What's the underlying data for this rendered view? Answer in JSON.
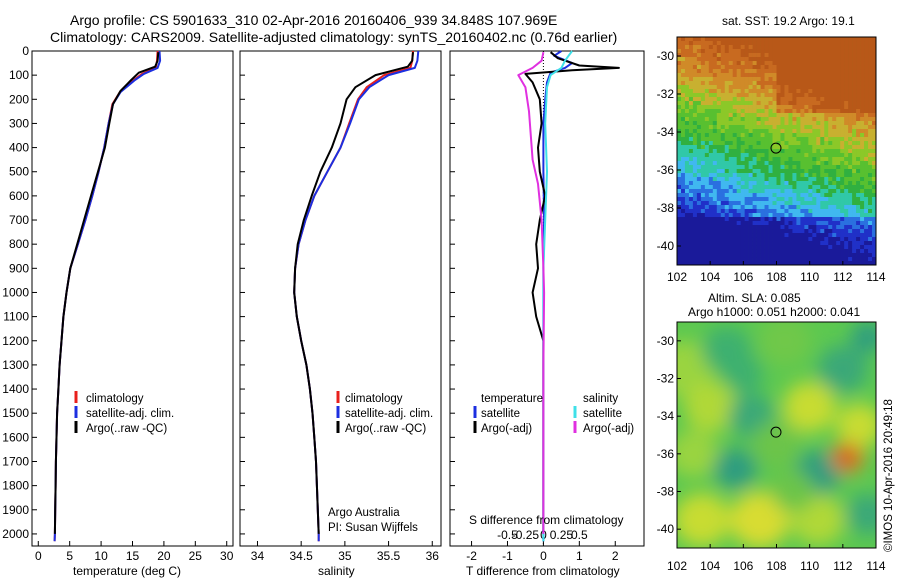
{
  "header": {
    "title_line1": "Argo profile: CS 5901633_310 02-Apr-2016 20160406_939 34.848S 107.969E",
    "title_line2": "Climatology: CARS2009. Satellite-adjusted climatology: synTS_20160402.nc (0.76d earlier)"
  },
  "colors": {
    "climatology": "#e8201c",
    "satellite": "#1c2fe0",
    "argo": "#000000",
    "salinity_satellite": "#3fe0e8",
    "salinity_argo": "#e030e0"
  },
  "legend": {
    "climatology": "climatology",
    "satellite_adj": "satellite-adj. clim.",
    "argo_raw": "Argo(..raw -QC)",
    "temperature": "temperature",
    "salinity": "salinity",
    "satellite": "satellite",
    "argo_adj": "Argo(-adj)"
  },
  "annotations": {
    "argo_australia": "Argo Australia",
    "pi": "PI: Susan Wijffels",
    "sst_title": "sat. SST: 19.2  Argo: 19.1",
    "sla_line1": "Altim. SLA: 0.085",
    "sla_line2": "Argo h1000: 0.051  h2000: 0.041",
    "timestamp": "©IMOS 10-Apr-2016 20:49:18"
  },
  "chart_data": [
    {
      "type": "line",
      "panel": "temperature",
      "xlabel": "temperature (deg C)",
      "xlim": [
        -1,
        31
      ],
      "xticks": [
        0,
        5,
        10,
        15,
        20,
        25,
        30
      ],
      "ylim": [
        0,
        2050
      ],
      "yticks": [
        0,
        100,
        200,
        300,
        400,
        500,
        600,
        700,
        800,
        900,
        1000,
        1100,
        1200,
        1300,
        1400,
        1500,
        1600,
        1700,
        1800,
        1900,
        2000
      ],
      "series": [
        {
          "name": "climatology",
          "color_key": "climatology",
          "points": [
            [
              19.0,
              0
            ],
            [
              18.9,
              40
            ],
            [
              18.7,
              70
            ],
            [
              16.5,
              95
            ],
            [
              15.2,
              120
            ],
            [
              13.0,
              170
            ],
            [
              11.8,
              220
            ],
            [
              11.2,
              300
            ],
            [
              10.5,
              400
            ],
            [
              9.6,
              500
            ],
            [
              8.6,
              600
            ],
            [
              7.5,
              700
            ],
            [
              6.3,
              800
            ],
            [
              5.1,
              900
            ],
            [
              4.5,
              1000
            ],
            [
              4.0,
              1100
            ],
            [
              3.7,
              1200
            ],
            [
              3.4,
              1300
            ],
            [
              3.2,
              1400
            ],
            [
              3.0,
              1500
            ],
            [
              2.9,
              1600
            ],
            [
              2.8,
              1700
            ],
            [
              2.75,
              1800
            ],
            [
              2.7,
              1900
            ],
            [
              2.65,
              2000
            ],
            [
              2.6,
              2030
            ]
          ]
        },
        {
          "name": "satellite-adj. clim.",
          "color_key": "satellite",
          "points": [
            [
              19.3,
              0
            ],
            [
              19.4,
              40
            ],
            [
              19.0,
              70
            ],
            [
              16.8,
              95
            ],
            [
              15.4,
              120
            ],
            [
              13.1,
              170
            ],
            [
              11.9,
              220
            ],
            [
              11.2,
              300
            ],
            [
              10.5,
              400
            ],
            [
              9.6,
              500
            ],
            [
              8.6,
              600
            ],
            [
              7.5,
              700
            ],
            [
              6.3,
              800
            ],
            [
              5.1,
              900
            ],
            [
              4.5,
              1000
            ],
            [
              4.0,
              1100
            ],
            [
              3.7,
              1200
            ],
            [
              3.4,
              1300
            ],
            [
              3.2,
              1400
            ],
            [
              3.0,
              1500
            ],
            [
              2.9,
              1600
            ],
            [
              2.8,
              1700
            ],
            [
              2.75,
              1800
            ],
            [
              2.7,
              1900
            ],
            [
              2.65,
              2000
            ],
            [
              2.6,
              2030
            ]
          ]
        },
        {
          "name": "Argo(..raw -QC)",
          "color_key": "argo",
          "points": [
            [
              19.1,
              5
            ],
            [
              19.0,
              40
            ],
            [
              18.6,
              65
            ],
            [
              16.0,
              90
            ],
            [
              14.8,
              120
            ],
            [
              13.1,
              165
            ],
            [
              11.9,
              220
            ],
            [
              11.3,
              300
            ],
            [
              10.6,
              400
            ],
            [
              9.5,
              500
            ],
            [
              8.4,
              600
            ],
            [
              7.3,
              700
            ],
            [
              6.3,
              790
            ],
            [
              5.1,
              900
            ],
            [
              4.5,
              1000
            ],
            [
              4.0,
              1100
            ],
            [
              3.7,
              1200
            ],
            [
              3.4,
              1300
            ],
            [
              3.2,
              1400
            ],
            [
              3.0,
              1500
            ],
            [
              2.9,
              1600
            ],
            [
              2.8,
              1700
            ],
            [
              2.75,
              1800
            ],
            [
              2.7,
              1900
            ],
            [
              2.65,
              2000
            ]
          ]
        }
      ]
    },
    {
      "type": "line",
      "panel": "salinity",
      "xlabel": "salinity",
      "xlim": [
        33.8,
        36.1
      ],
      "xticks": [
        34,
        34.5,
        35,
        35.5,
        36
      ],
      "ylim": [
        0,
        2050
      ],
      "series": [
        {
          "name": "climatology",
          "color_key": "climatology",
          "points": [
            [
              35.78,
              0
            ],
            [
              35.77,
              40
            ],
            [
              35.75,
              70
            ],
            [
              35.45,
              100
            ],
            [
              35.25,
              150
            ],
            [
              35.15,
              200
            ],
            [
              35.05,
              300
            ],
            [
              34.95,
              400
            ],
            [
              34.8,
              500
            ],
            [
              34.65,
              600
            ],
            [
              34.55,
              700
            ],
            [
              34.47,
              800
            ],
            [
              34.43,
              900
            ],
            [
              34.42,
              1000
            ],
            [
              34.45,
              1100
            ],
            [
              34.5,
              1200
            ],
            [
              34.56,
              1300
            ],
            [
              34.6,
              1400
            ],
            [
              34.63,
              1500
            ],
            [
              34.65,
              1600
            ],
            [
              34.67,
              1700
            ],
            [
              34.68,
              1800
            ],
            [
              34.69,
              1900
            ],
            [
              34.7,
              2000
            ],
            [
              34.7,
              2030
            ]
          ]
        },
        {
          "name": "satellite-adj. clim.",
          "color_key": "satellite",
          "points": [
            [
              35.84,
              0
            ],
            [
              35.83,
              40
            ],
            [
              35.8,
              70
            ],
            [
              35.5,
              100
            ],
            [
              35.28,
              150
            ],
            [
              35.16,
              200
            ],
            [
              35.06,
              300
            ],
            [
              34.95,
              400
            ],
            [
              34.8,
              500
            ],
            [
              34.65,
              600
            ],
            [
              34.55,
              700
            ],
            [
              34.47,
              800
            ],
            [
              34.43,
              900
            ],
            [
              34.42,
              1000
            ],
            [
              34.45,
              1100
            ],
            [
              34.5,
              1200
            ],
            [
              34.56,
              1300
            ],
            [
              34.6,
              1400
            ],
            [
              34.63,
              1500
            ],
            [
              34.65,
              1600
            ],
            [
              34.67,
              1700
            ],
            [
              34.68,
              1800
            ],
            [
              34.69,
              1900
            ],
            [
              34.7,
              2000
            ],
            [
              34.7,
              2030
            ]
          ]
        },
        {
          "name": "Argo(..raw -QC)",
          "color_key": "argo",
          "points": [
            [
              35.78,
              5
            ],
            [
              35.77,
              40
            ],
            [
              35.72,
              65
            ],
            [
              35.35,
              100
            ],
            [
              35.12,
              150
            ],
            [
              35.02,
              200
            ],
            [
              34.95,
              300
            ],
            [
              34.85,
              400
            ],
            [
              34.72,
              500
            ],
            [
              34.62,
              600
            ],
            [
              34.53,
              700
            ],
            [
              34.46,
              800
            ],
            [
              34.43,
              900
            ],
            [
              34.42,
              1000
            ],
            [
              34.45,
              1100
            ],
            [
              34.5,
              1200
            ],
            [
              34.56,
              1300
            ],
            [
              34.6,
              1400
            ],
            [
              34.63,
              1500
            ],
            [
              34.65,
              1600
            ],
            [
              34.67,
              1700
            ],
            [
              34.68,
              1800
            ],
            [
              34.69,
              1900
            ],
            [
              34.7,
              2000
            ]
          ]
        }
      ]
    },
    {
      "type": "line",
      "panel": "differences",
      "xlabel_bottom": "T difference from climatology",
      "xticks_bottom": [
        -2,
        -1,
        0,
        1,
        2
      ],
      "xlabel_top": "S difference from climatology",
      "xticks_top": [
        -0.5,
        -0.25,
        0,
        0.25,
        0.5
      ],
      "xlim": [
        -2.6,
        2.8
      ],
      "ylim": [
        0,
        2050
      ],
      "series": [
        {
          "name": "temperature satellite",
          "color_key": "satellite",
          "points": [
            [
              0.5,
              0
            ],
            [
              0.3,
              20
            ],
            [
              0.8,
              50
            ],
            [
              0.6,
              70
            ],
            [
              0.2,
              90
            ],
            [
              0.1,
              130
            ],
            [
              0.05,
              200
            ],
            [
              0.0,
              300
            ],
            [
              0.0,
              500
            ],
            [
              0.02,
              700
            ],
            [
              0.0,
              900
            ],
            [
              0.0,
              1200
            ],
            [
              0.0,
              2030
            ]
          ]
        },
        {
          "name": "temperature Argo(-adj)",
          "color_key": "argo",
          "points": [
            [
              0.2,
              5
            ],
            [
              0.4,
              30
            ],
            [
              1.0,
              60
            ],
            [
              2.1,
              70
            ],
            [
              0.8,
              80
            ],
            [
              -0.5,
              95
            ],
            [
              -0.3,
              130
            ],
            [
              -0.1,
              200
            ],
            [
              -0.05,
              300
            ],
            [
              -0.15,
              400
            ],
            [
              -0.1,
              500
            ],
            [
              0.05,
              600
            ],
            [
              -0.1,
              700
            ],
            [
              -0.2,
              800
            ],
            [
              -0.15,
              900
            ],
            [
              -0.3,
              1000
            ],
            [
              -0.2,
              1100
            ],
            [
              0.0,
              1200
            ],
            [
              0.0,
              1400
            ],
            [
              0.0,
              2000
            ]
          ]
        },
        {
          "name": "salinity satellite",
          "color_key": "salinity_satellite",
          "points": [
            [
              0.8,
              0
            ],
            [
              0.6,
              40
            ],
            [
              0.5,
              70
            ],
            [
              0.2,
              100
            ],
            [
              0.1,
              150
            ],
            [
              0.05,
              300
            ],
            [
              0.1,
              500
            ],
            [
              0.05,
              700
            ],
            [
              0.0,
              900
            ],
            [
              0.0,
              2030
            ]
          ]
        },
        {
          "name": "salinity Argo(-adj)",
          "color_key": "salinity_argo",
          "points": [
            [
              0.0,
              5
            ],
            [
              -0.05,
              40
            ],
            [
              -0.3,
              70
            ],
            [
              -0.7,
              100
            ],
            [
              -0.5,
              150
            ],
            [
              -0.4,
              250
            ],
            [
              -0.35,
              350
            ],
            [
              -0.3,
              450
            ],
            [
              -0.15,
              550
            ],
            [
              -0.05,
              700
            ],
            [
              0.0,
              900
            ],
            [
              0.02,
              1000
            ],
            [
              0.0,
              1300
            ],
            [
              0.0,
              2000
            ]
          ]
        }
      ]
    },
    {
      "type": "heatmap",
      "panel": "SST map",
      "title": "sat. SST: 19.2  Argo: 19.1",
      "xlim": [
        102,
        114
      ],
      "xticks": [
        102,
        104,
        106,
        108,
        110,
        112,
        114
      ],
      "ylim": [
        -41,
        -29
      ],
      "yticks": [
        -30,
        -32,
        -34,
        -36,
        -38,
        -40
      ],
      "float_position": [
        107.969,
        -34.848
      ]
    },
    {
      "type": "heatmap",
      "panel": "SLA map",
      "title": "Altim. SLA: 0.085",
      "subtitle": "Argo h1000: 0.051  h2000: 0.041",
      "xlim": [
        102,
        114
      ],
      "xticks": [
        102,
        104,
        106,
        108,
        110,
        112,
        114
      ],
      "ylim": [
        -41,
        -29
      ],
      "yticks": [
        -30,
        -32,
        -34,
        -36,
        -38,
        -40
      ],
      "float_position": [
        107.969,
        -34.848
      ]
    }
  ]
}
